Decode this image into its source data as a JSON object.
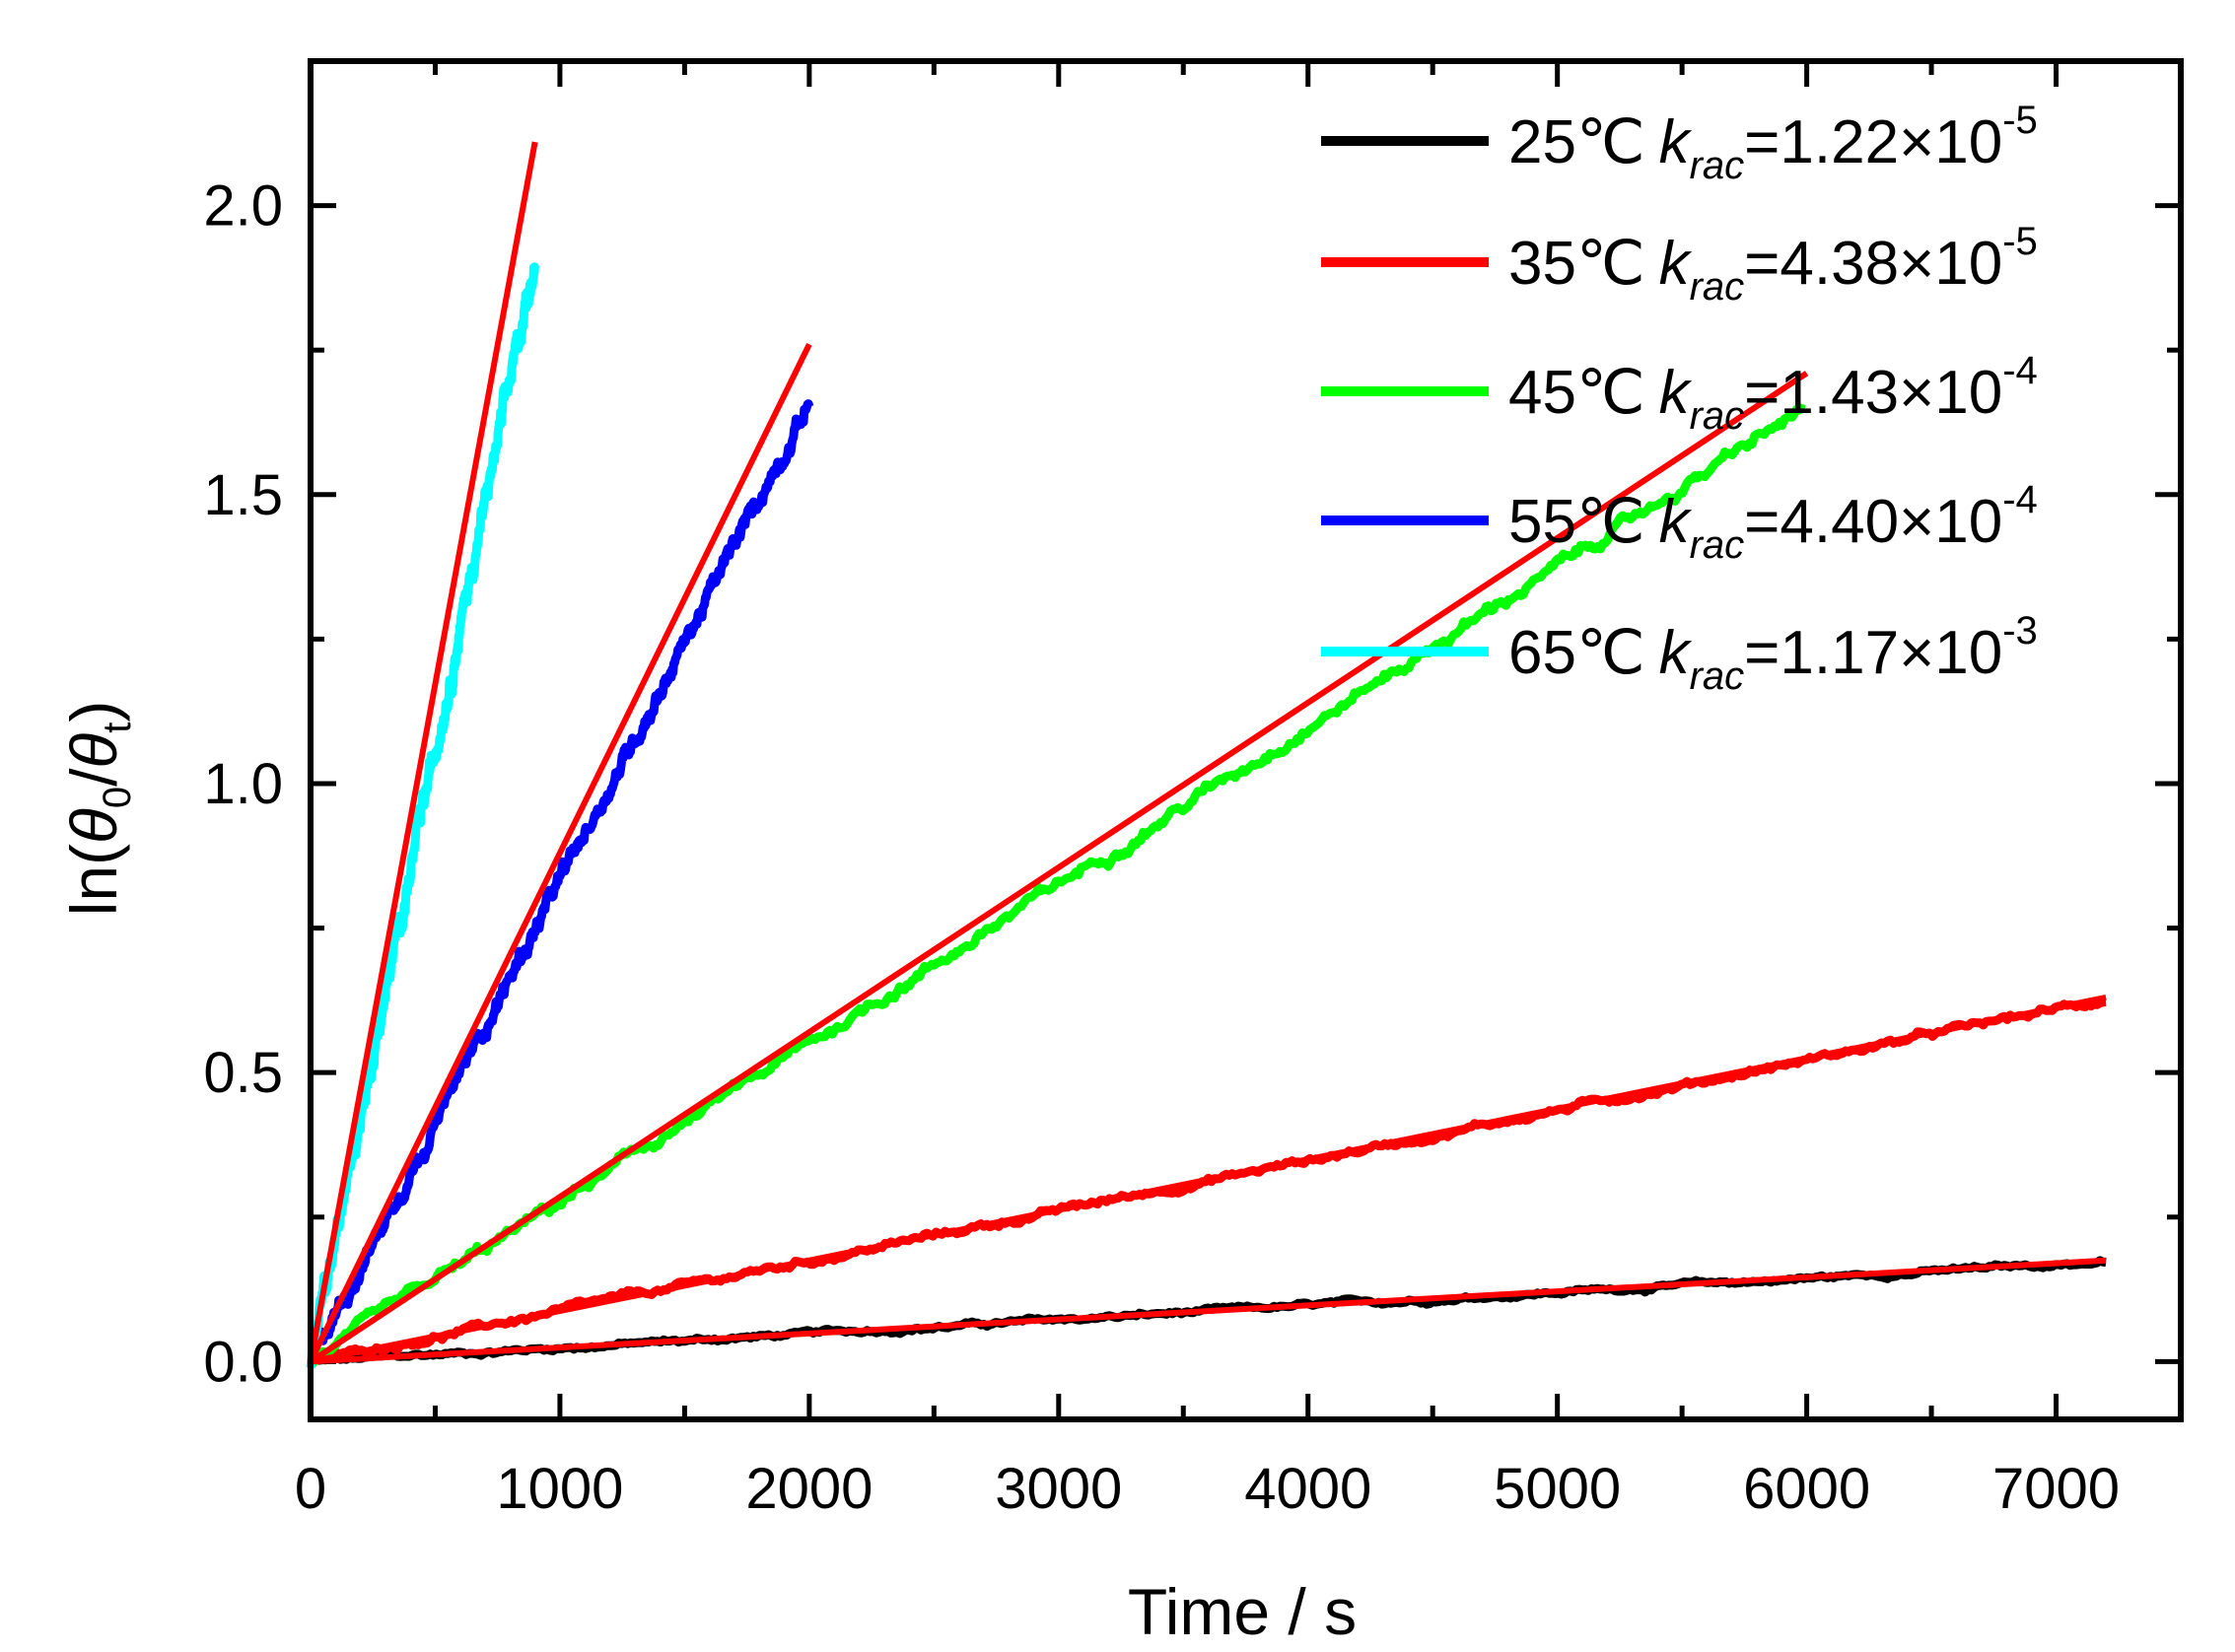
{
  "chart_data": {
    "type": "line",
    "xlabel": "Time / s",
    "ylabel": {
      "prefix": "ln(",
      "num_var": "θ",
      "num_sub": "0",
      "slash": "/",
      "den_var": "θ",
      "den_sub": "t",
      "suffix": ")"
    },
    "xlim": [
      0,
      7500
    ],
    "ylim": [
      -0.1,
      2.25
    ],
    "xticks": [
      0,
      1000,
      2000,
      3000,
      4000,
      5000,
      6000,
      7000
    ],
    "xtick_labels": [
      "0",
      "1000",
      "2000",
      "3000",
      "4000",
      "5000",
      "6000",
      "7000"
    ],
    "yticks": [
      0.0,
      0.5,
      1.0,
      1.5,
      2.0
    ],
    "ytick_labels": [
      "0.0",
      "0.5",
      "1.0",
      "1.5",
      "2.0"
    ],
    "legend_position": "top-right",
    "series": [
      {
        "name": "25℃",
        "color": "#000000",
        "k_symbol": "k",
        "k_sub": "rac",
        "k_mantissa": "=1.22×10",
        "k_exponent": "-5",
        "x_end": 7200,
        "slope": 2.4e-05,
        "noise": 0.004
      },
      {
        "name": "35℃",
        "color": "#ff0000",
        "k_symbol": "k",
        "k_sub": "rac",
        "k_mantissa": "=4.38×10",
        "k_exponent": "-5",
        "x_end": 7200,
        "slope": 8.7e-05,
        "noise": 0.006
      },
      {
        "name": "45℃",
        "color": "#00ff00",
        "k_symbol": "k",
        "k_sub": "rac",
        "k_mantissa": "=1.43×10",
        "k_exponent": "-4",
        "x_end": 5980,
        "slope": 0.000275,
        "noise": 0.01
      },
      {
        "name": "55℃",
        "color": "#0000ff",
        "k_symbol": "k",
        "k_sub": "rac",
        "k_mantissa": "=4.40×10",
        "k_exponent": "-4",
        "x_end": 2000,
        "slope": 0.00083,
        "noise": 0.015
      },
      {
        "name": "65℃",
        "color": "#00ffff",
        "k_symbol": "k",
        "k_sub": "rac",
        "k_mantissa": "=1.17×10",
        "k_exponent": "-3",
        "x_end": 900,
        "slope": 0.00212,
        "noise": 0.02
      }
    ],
    "fit_lines": [
      {
        "color": "#ff0000",
        "x": [
          0,
          7200
        ],
        "y": [
          0.0,
          0.175
        ]
      },
      {
        "color": "#ff0000",
        "x": [
          0,
          7200
        ],
        "y": [
          0.0,
          0.63
        ]
      },
      {
        "color": "#ff0000",
        "x": [
          0,
          6000
        ],
        "y": [
          0.0,
          1.71
        ]
      },
      {
        "color": "#ff0000",
        "x": [
          0,
          2000
        ],
        "y": [
          0.0,
          1.76
        ]
      },
      {
        "color": "#ff0000",
        "x": [
          0,
          900
        ],
        "y": [
          0.0,
          2.11
        ]
      }
    ]
  }
}
